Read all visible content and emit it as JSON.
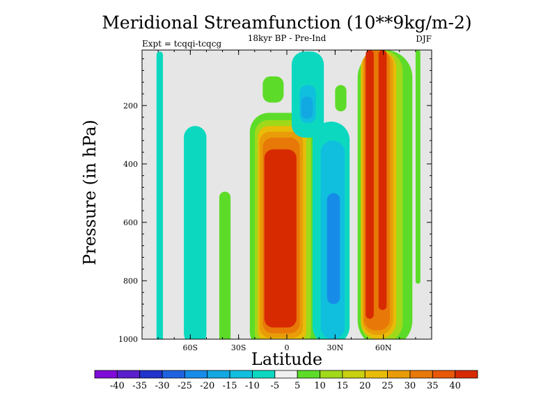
{
  "chart_data": {
    "type": "filled-contour",
    "title": "Meridional Streamfunction (10**9kg/m-2)",
    "subtitle_center": "18kyr BP - Pre-Ind",
    "subtitle_left": "Expt = tcqqi-tcqcg",
    "subtitle_right": "DJF",
    "xlabel": "Latitude",
    "ylabel": "Pressure (in hPa)",
    "xlim": [
      -90,
      90
    ],
    "ylim": [
      1000,
      10
    ],
    "x_ticks": [
      {
        "value": -60,
        "label": "60S"
      },
      {
        "value": -30,
        "label": "30S"
      },
      {
        "value": 0,
        "label": "0"
      },
      {
        "value": 30,
        "label": "30N"
      },
      {
        "value": 60,
        "label": "60N"
      }
    ],
    "y_ticks": [
      {
        "value": 200,
        "label": "200"
      },
      {
        "value": 400,
        "label": "400"
      },
      {
        "value": 600,
        "label": "600"
      },
      {
        "value": 800,
        "label": "800"
      },
      {
        "value": 1000,
        "label": "1000"
      }
    ],
    "background_color": "#e6e6e6",
    "colorbar": {
      "labels": [
        "-40",
        "-35",
        "-30",
        "-25",
        "-20",
        "-15",
        "-10",
        "-5",
        "5",
        "10",
        "15",
        "20",
        "25",
        "30",
        "35",
        "40"
      ],
      "colors": [
        "#7f0bd8",
        "#5a1fcc",
        "#2232cc",
        "#1e62e0",
        "#168ce8",
        "#12a8e2",
        "#10bede",
        "#0cd8c0",
        "#f0f0f0",
        "#5cdc28",
        "#a0d81a",
        "#c8d010",
        "#e8bc08",
        "#e89c08",
        "#e87808",
        "#e85808",
        "#d82a00"
      ]
    },
    "features": [
      {
        "name": "southern-polar-streak",
        "kind": "negative",
        "fill": "#0cd8c0",
        "lat": [
          -81,
          -77
        ],
        "p": [
          15,
          1025
        ],
        "rise": 0.6
      },
      {
        "name": "southern-midlat-column",
        "kind": "negative",
        "fill": "#0cd8c0",
        "lat": [
          -64,
          -50
        ],
        "p": [
          270,
          1020
        ],
        "rise": 0.45
      },
      {
        "name": "subtropical-weak-positive",
        "kind": "positive",
        "fill": "#5cdc28",
        "lat": [
          -42,
          -35
        ],
        "p": [
          495,
          1020
        ],
        "rise": 0.35
      },
      {
        "name": "hadley-cell-outer",
        "kind": "positive",
        "fill": "#5cdc28",
        "lat": [
          -23,
          23
        ],
        "p": [
          225,
          1040
        ],
        "rise": 0.08
      },
      {
        "name": "hadley-cell-level-2",
        "kind": "positive",
        "fill": "#a0d81a",
        "lat": [
          -20,
          15
        ],
        "p": [
          250,
          1025
        ],
        "rise": 0.06
      },
      {
        "name": "hadley-cell-level-3",
        "kind": "positive",
        "fill": "#e8bc08",
        "lat": [
          -18,
          12
        ],
        "p": [
          270,
          1010
        ],
        "rise": 0.05
      },
      {
        "name": "hadley-cell-level-4",
        "kind": "positive",
        "fill": "#e89c08",
        "lat": [
          -17,
          10
        ],
        "p": [
          290,
          995
        ],
        "rise": 0.05
      },
      {
        "name": "hadley-cell-level-5",
        "kind": "positive",
        "fill": "#e87808",
        "lat": [
          -15,
          8
        ],
        "p": [
          310,
          980
        ],
        "rise": 0.05
      },
      {
        "name": "hadley-cell-core",
        "kind": "positive",
        "fill": "#d82a00",
        "lat": [
          -14,
          6
        ],
        "p": [
          350,
          960
        ],
        "rise": 0.05
      },
      {
        "name": "upper-tropical-negative-outer",
        "kind": "negative",
        "fill": "#0cd8c0",
        "lat": [
          3,
          23
        ],
        "p": [
          15,
          310
        ],
        "rise": 0.15
      },
      {
        "name": "upper-tropical-negative-core",
        "kind": "negative",
        "fill": "#10bede",
        "lat": [
          8,
          18
        ],
        "p": [
          130,
          260
        ],
        "rise": 0.2
      },
      {
        "name": "upper-tropical-negative-center",
        "kind": "negative",
        "fill": "#12a8e2",
        "lat": [
          9,
          16
        ],
        "p": [
          170,
          245
        ],
        "rise": 0.25
      },
      {
        "name": "southward-upper-tongue",
        "kind": "positive",
        "fill": "#5cdc28",
        "lat": [
          -15,
          -2
        ],
        "p": [
          100,
          190
        ],
        "rise": 0.3
      },
      {
        "name": "northern-subtropical-negative-outer",
        "kind": "negative",
        "fill": "#0cd8c0",
        "lat": [
          16,
          39
        ],
        "p": [
          255,
          1020
        ],
        "rise": 0.1
      },
      {
        "name": "northern-subtropical-negative-mid",
        "kind": "negative",
        "fill": "#10bede",
        "lat": [
          21,
          36
        ],
        "p": [
          320,
          1000
        ],
        "rise": 0.12
      },
      {
        "name": "northern-subtropical-negative-core",
        "kind": "negative",
        "fill": "#168ce8",
        "lat": [
          25,
          33
        ],
        "p": [
          500,
          880
        ],
        "rise": 0.3
      },
      {
        "name": "northern-upper-positive",
        "kind": "positive",
        "fill": "#5cdc28",
        "lat": [
          30,
          37
        ],
        "p": [
          130,
          220
        ],
        "rise": 0.3
      },
      {
        "name": "ferrel-cell-outer",
        "kind": "positive",
        "fill": "#5cdc28",
        "lat": [
          44,
          78
        ],
        "p": [
          10,
          1030
        ],
        "rise": 0.1
      },
      {
        "name": "ferrel-cell-level-2",
        "kind": "positive",
        "fill": "#a0d81a",
        "lat": [
          46,
          72
        ],
        "p": [
          10,
          1015
        ],
        "rise": 0.08
      },
      {
        "name": "ferrel-cell-level-3",
        "kind": "positive",
        "fill": "#e8bc08",
        "lat": [
          46,
          68
        ],
        "p": [
          10,
          1000
        ],
        "rise": 0.07
      },
      {
        "name": "ferrel-cell-level-4",
        "kind": "positive",
        "fill": "#e89c08",
        "lat": [
          47,
          66
        ],
        "p": [
          10,
          985
        ],
        "rise": 0.05
      },
      {
        "name": "ferrel-cell-level-5",
        "kind": "positive",
        "fill": "#e87808",
        "lat": [
          48,
          64
        ],
        "p": [
          10,
          970
        ],
        "rise": 0.04
      },
      {
        "name": "ferrel-cell-core-left",
        "kind": "positive",
        "fill": "#d82a00",
        "lat": [
          49,
          54
        ],
        "p": [
          10,
          930
        ],
        "rise": 0.03
      },
      {
        "name": "ferrel-cell-core-right",
        "kind": "positive",
        "fill": "#d82a00",
        "lat": [
          57,
          62
        ],
        "p": [
          10,
          900
        ],
        "rise": 0.03
      },
      {
        "name": "polar-positive-streak",
        "kind": "positive",
        "fill": "#5cdc28",
        "lat": [
          80,
          83
        ],
        "p": [
          10,
          810
        ],
        "rise": 0.2
      }
    ]
  }
}
